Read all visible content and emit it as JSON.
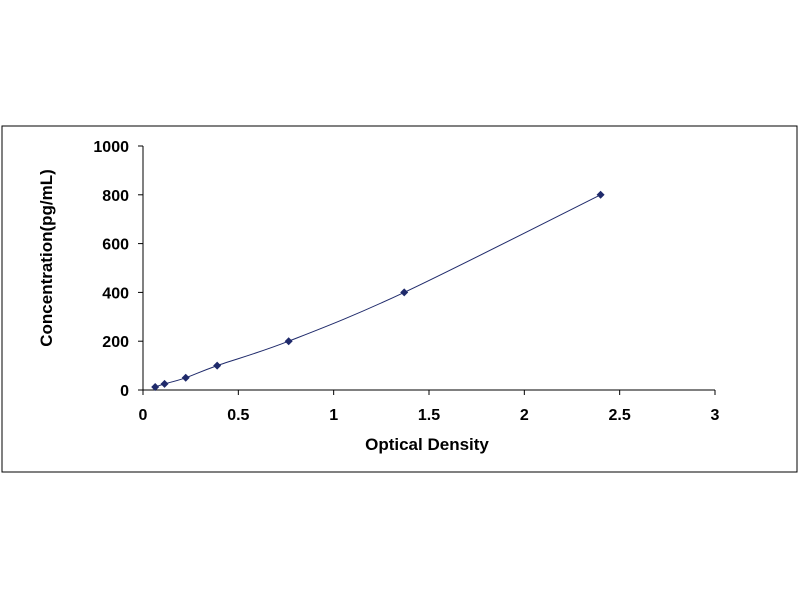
{
  "chart_data": {
    "type": "scatter",
    "title": "",
    "xlabel": "Optical Density",
    "ylabel": "Concentration(pg/mL)",
    "xlim": [
      0,
      3
    ],
    "ylim": [
      0,
      1000
    ],
    "xticks": [
      "0",
      "0.5",
      "1",
      "1.5",
      "2",
      "2.5",
      "3"
    ],
    "yticks": [
      "0",
      "200",
      "400",
      "600",
      "800",
      "1000"
    ],
    "grid": false,
    "legend": "none",
    "series": [
      {
        "marker": "diamond",
        "trendline": "smooth",
        "x": [
          0.064,
          0.113,
          0.224,
          0.389,
          0.764,
          1.37,
          2.4
        ],
        "y": [
          12.5,
          25,
          50,
          100,
          200,
          400,
          800
        ]
      }
    ],
    "colors": {
      "marker": "#1f2a6b",
      "line": "#1f2a6b",
      "axis": "#000000"
    }
  }
}
